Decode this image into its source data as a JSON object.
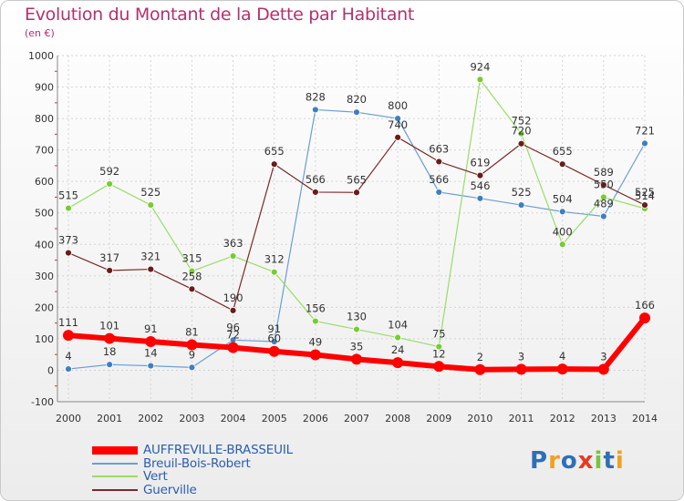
{
  "title": "Evolution du Montant de la Dette par Habitant",
  "subtitle": "(en €)",
  "logo": {
    "text": "Proxiti",
    "colors": [
      "#2f6fb5",
      "#f0a020",
      "#2f6fb5",
      "#e63a26",
      "#7cc242",
      "#2f6fb5",
      "#f0a020"
    ]
  },
  "chart_data": {
    "type": "line",
    "x": [
      "2000",
      "2001",
      "2002",
      "2003",
      "2004",
      "2005",
      "2006",
      "2007",
      "2008",
      "2009",
      "2010",
      "2011",
      "2012",
      "2013",
      "2014"
    ],
    "ylim": [
      -100,
      1000
    ],
    "yticks": [
      "-100",
      "0",
      "100",
      "200",
      "300",
      "400",
      "500",
      "600",
      "700",
      "800",
      "900",
      "1000"
    ],
    "grid": true,
    "legend": "bottom-left",
    "series": [
      {
        "name": "AUFFREVILLE-BRASSEUIL",
        "color": "#ff0000",
        "width": 6,
        "marker": 6,
        "values": [
          111,
          101,
          91,
          81,
          72,
          60,
          49,
          35,
          24,
          12,
          2,
          3,
          4,
          3,
          166
        ],
        "labels": [
          "111",
          "101",
          "91",
          "81",
          "72",
          "60",
          "49",
          "35",
          "24",
          "12",
          "2",
          "3",
          "4",
          "3",
          "166"
        ]
      },
      {
        "name": "Breuil-Bois-Robert",
        "color": "#6a9fd4",
        "width": 1.2,
        "marker": 3.5,
        "markerColor": "#3f7fc0",
        "values": [
          4,
          18,
          14,
          9,
          96,
          91,
          828,
          820,
          800,
          566,
          546,
          525,
          504,
          489,
          721
        ],
        "labels": [
          "4",
          "18",
          "14",
          "9",
          "96",
          "91",
          "828",
          "820",
          "800",
          "566",
          "546",
          "525",
          "504",
          "489",
          "721"
        ]
      },
      {
        "name": "Vert",
        "color": "#99dd66",
        "width": 1.2,
        "marker": 3.5,
        "markerColor": "#77cc33",
        "values": [
          515,
          592,
          525,
          315,
          363,
          312,
          156,
          130,
          104,
          75,
          924,
          752,
          400,
          550,
          514
        ],
        "labels": [
          "515",
          "592",
          "525",
          "315",
          "363",
          "312",
          "156",
          "130",
          "104",
          "75",
          "924",
          "752",
          "400",
          "550",
          "514"
        ]
      },
      {
        "name": "Guerville",
        "color": "#7a2a2a",
        "width": 1.2,
        "marker": 3.5,
        "markerColor": "#6a1c1c",
        "values": [
          373,
          317,
          321,
          258,
          190,
          655,
          566,
          565,
          740,
          663,
          619,
          720,
          655,
          589,
          525
        ],
        "labels": [
          "373",
          "317",
          "321",
          "258",
          "190",
          "655",
          "566",
          "565",
          "740",
          "663",
          "619",
          "720",
          "655",
          "589",
          "525"
        ]
      }
    ]
  }
}
